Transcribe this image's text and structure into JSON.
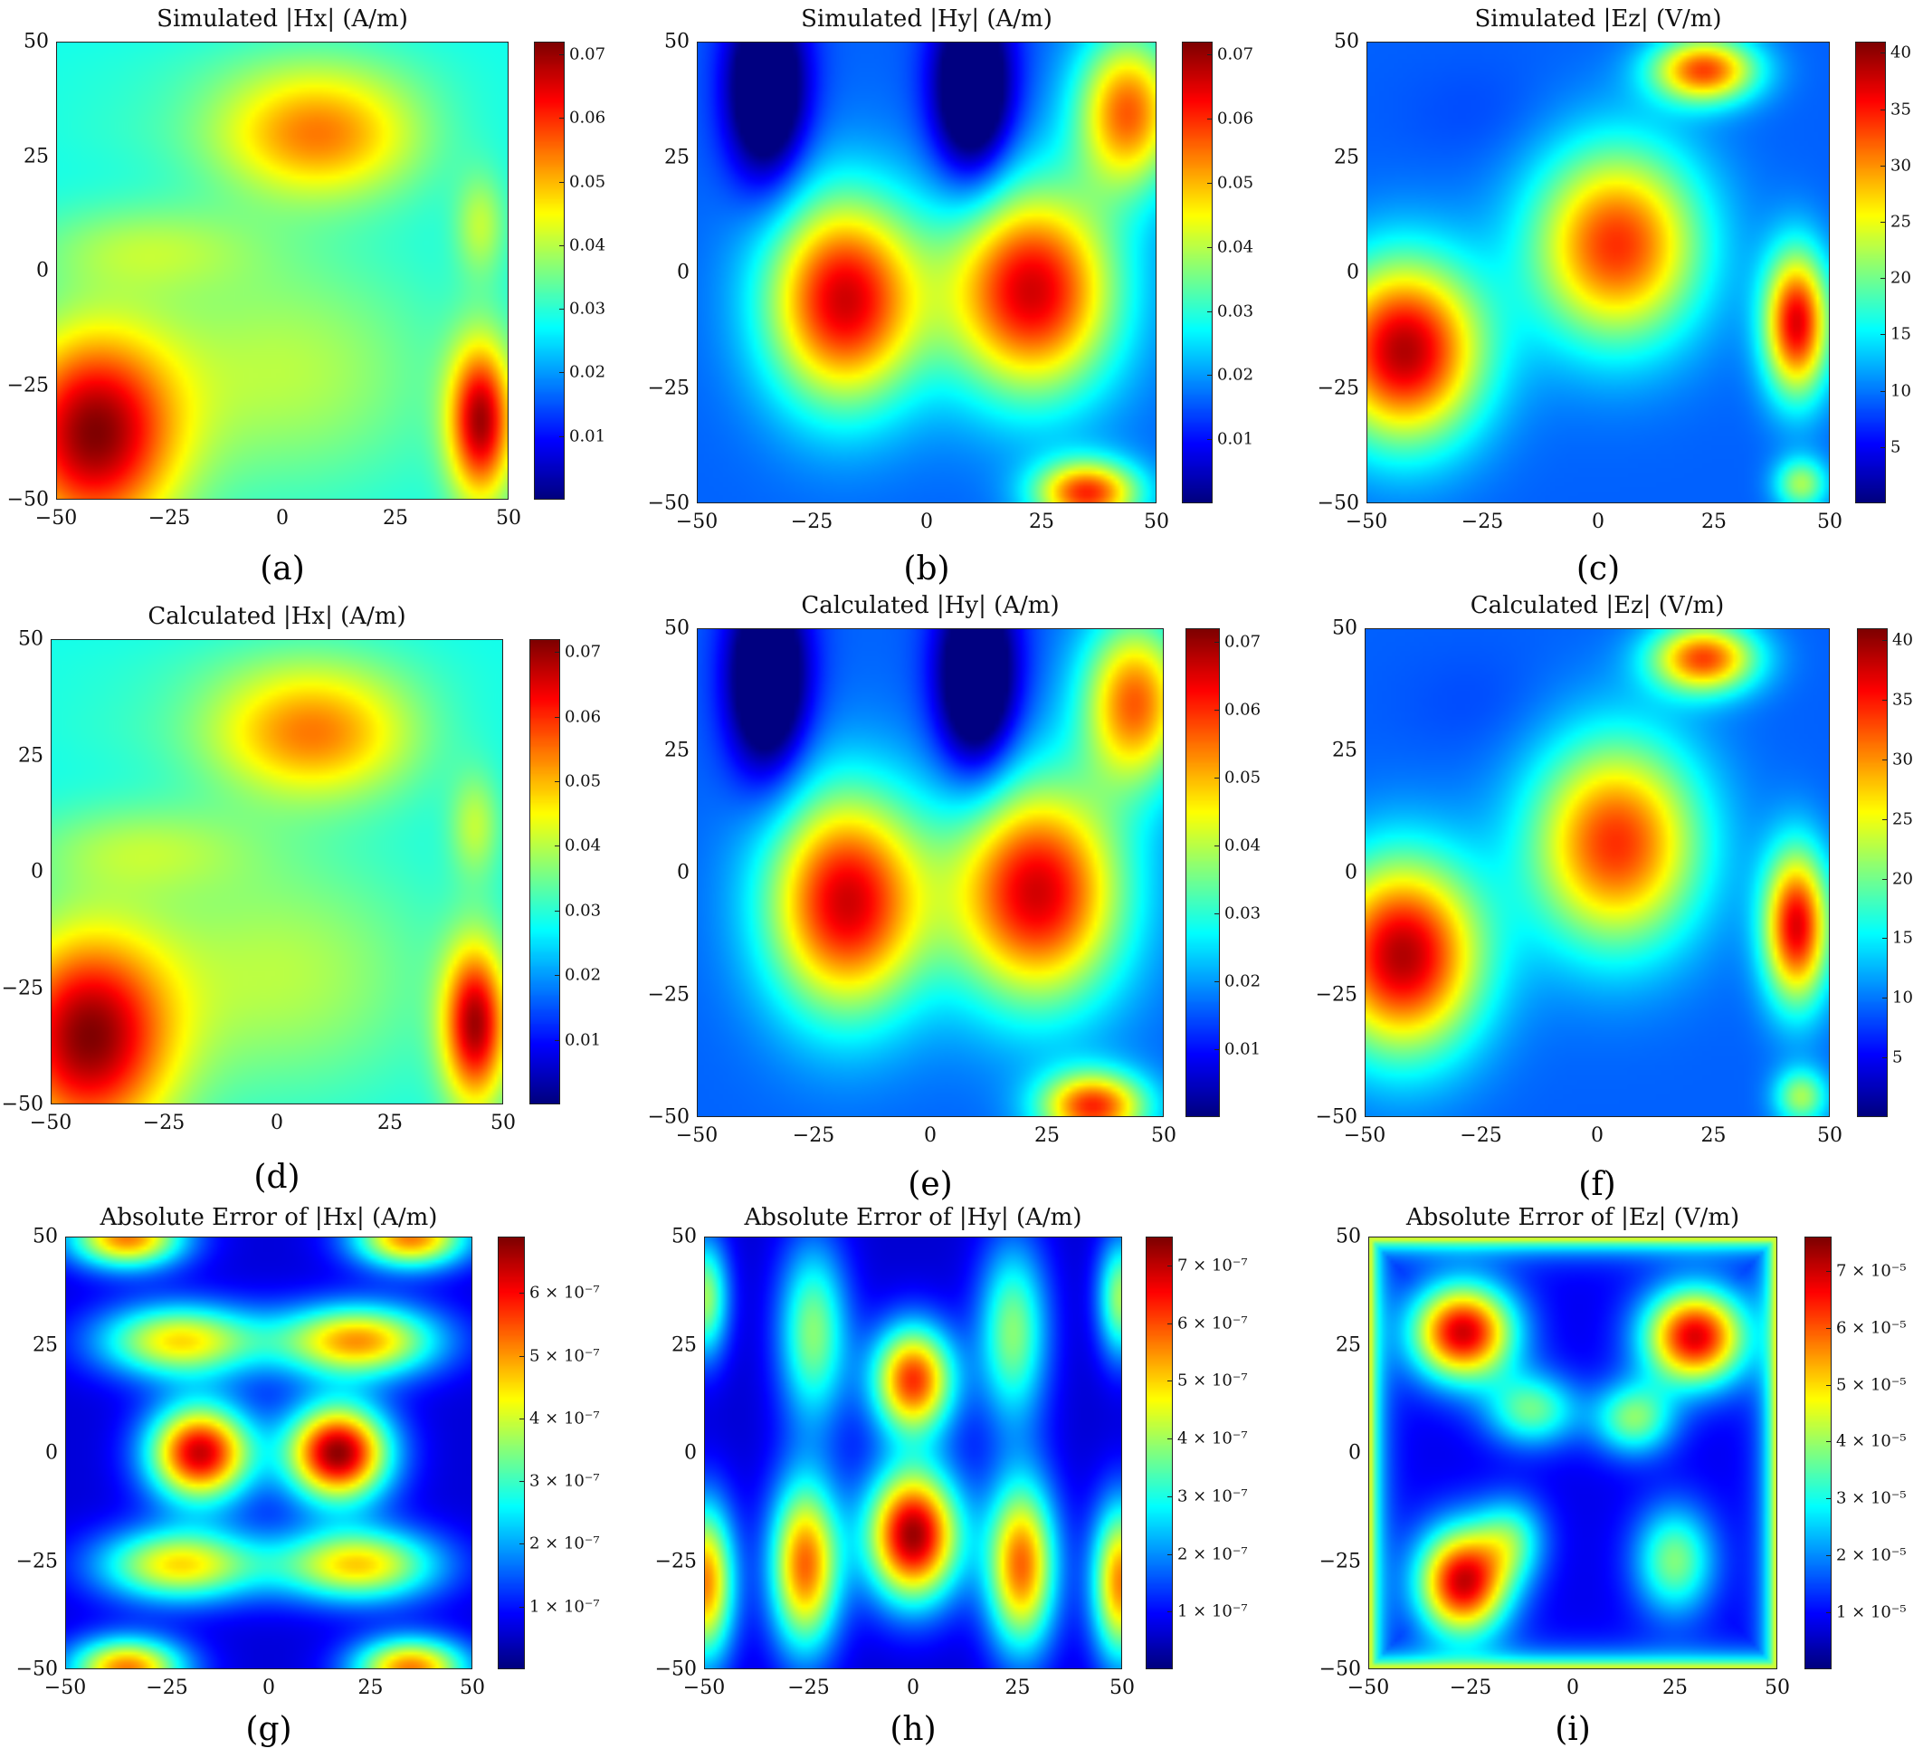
{
  "chart_data": [
    {
      "type": "heatmap",
      "panel": "(a)",
      "title": "Simulated |Hx| (A/m)",
      "xlim": [
        -50,
        50
      ],
      "ylim": [
        -50,
        50
      ],
      "x_ticks": [
        "−50",
        "−25",
        "0",
        "25",
        "50"
      ],
      "y_ticks": [
        "50",
        "25",
        "0",
        "−25",
        "−50"
      ],
      "colorbar": {
        "ticks": [
          "0.07",
          "0.06",
          "0.05",
          "0.04",
          "0.03",
          "0.02",
          "0.01"
        ],
        "range": [
          0,
          0.072
        ]
      },
      "colormap": "jet",
      "features": [
        [
          -42,
          -36,
          13,
          16,
          0.07
        ],
        [
          44,
          -33,
          5,
          12,
          0.068
        ],
        [
          8,
          30,
          16,
          10,
          0.054
        ],
        [
          0,
          -22,
          24,
          18,
          0.04
        ],
        [
          -30,
          5,
          18,
          7,
          0.038
        ],
        [
          -30,
          31,
          18,
          7,
          0.03
        ],
        [
          44,
          10,
          4,
          8,
          0.04
        ],
        [
          -5,
          44,
          30,
          6,
          0.03
        ]
      ],
      "baseline": 0.028
    },
    {
      "type": "heatmap",
      "panel": "(b)",
      "title": "Simulated |Hy| (A/m)",
      "xlim": [
        -50,
        50
      ],
      "ylim": [
        -50,
        50
      ],
      "x_ticks": [
        "−50",
        "−25",
        "0",
        "25",
        "50"
      ],
      "y_ticks": [
        "50",
        "25",
        "0",
        "−25",
        "−50"
      ],
      "colorbar": {
        "ticks": [
          "0.07",
          "0.06",
          "0.05",
          "0.04",
          "0.03",
          "0.02",
          "0.01"
        ],
        "range": [
          0,
          0.072
        ]
      },
      "colormap": "jet",
      "features": [
        [
          -18,
          -6,
          12,
          16,
          0.066
        ],
        [
          23,
          -4,
          13,
          16,
          0.066
        ],
        [
          44,
          35,
          8,
          12,
          0.056
        ],
        [
          35,
          -48,
          8,
          5,
          0.06
        ],
        [
          -35,
          40,
          6,
          14,
          -0.016
        ],
        [
          10,
          40,
          6,
          14,
          -0.016
        ]
      ],
      "baseline": 0.016
    },
    {
      "type": "heatmap",
      "panel": "(c)",
      "title": "Simulated |Ez| (V/m)",
      "xlim": [
        -50,
        50
      ],
      "ylim": [
        -50,
        50
      ],
      "x_ticks": [
        "−50",
        "−25",
        "0",
        "25",
        "50"
      ],
      "y_ticks": [
        "50",
        "25",
        "0",
        "−25",
        "−50"
      ],
      "colorbar": {
        "ticks": [
          "40",
          "35",
          "30",
          "25",
          "20",
          "15",
          "10",
          "5"
        ],
        "range": [
          0,
          41
        ]
      },
      "colormap": "jet",
      "features": [
        [
          -42,
          -17,
          12,
          14,
          39
        ],
        [
          4,
          6,
          13,
          15,
          34
        ],
        [
          43,
          -11,
          5,
          11,
          37
        ],
        [
          23,
          44,
          8,
          5,
          33
        ],
        [
          44,
          -46,
          4,
          4,
          22
        ],
        [
          -25,
          34,
          12,
          8,
          8
        ]
      ],
      "baseline": 9
    },
    {
      "type": "heatmap",
      "panel": "(d)",
      "title": "Calculated |Hx| (A/m)",
      "xlim": [
        -50,
        50
      ],
      "ylim": [
        -50,
        50
      ],
      "x_ticks": [
        "−50",
        "−25",
        "0",
        "25",
        "50"
      ],
      "y_ticks": [
        "50",
        "25",
        "0",
        "−25",
        "−50"
      ],
      "colorbar": {
        "ticks": [
          "0.07",
          "0.06",
          "0.05",
          "0.04",
          "0.03",
          "0.02",
          "0.01"
        ],
        "range": [
          0,
          0.072
        ]
      },
      "colormap": "jet",
      "features": [
        [
          -42,
          -36,
          13,
          16,
          0.07
        ],
        [
          44,
          -33,
          5,
          12,
          0.068
        ],
        [
          8,
          30,
          16,
          10,
          0.054
        ],
        [
          0,
          -22,
          24,
          18,
          0.04
        ],
        [
          -30,
          5,
          18,
          7,
          0.038
        ],
        [
          -30,
          31,
          18,
          7,
          0.03
        ],
        [
          44,
          10,
          4,
          8,
          0.04
        ],
        [
          -5,
          44,
          30,
          6,
          0.03
        ]
      ],
      "baseline": 0.028
    },
    {
      "type": "heatmap",
      "panel": "(e)",
      "title": "Calculated |Hy| (A/m)",
      "xlim": [
        -50,
        50
      ],
      "ylim": [
        -50,
        50
      ],
      "x_ticks": [
        "−50",
        "−25",
        "0",
        "25",
        "50"
      ],
      "y_ticks": [
        "50",
        "25",
        "0",
        "−25",
        "−50"
      ],
      "colorbar": {
        "ticks": [
          "0.07",
          "0.06",
          "0.05",
          "0.04",
          "0.03",
          "0.02",
          "0.01"
        ],
        "range": [
          0,
          0.072
        ]
      },
      "colormap": "jet",
      "features": [
        [
          -18,
          -6,
          12,
          16,
          0.066
        ],
        [
          23,
          -4,
          13,
          16,
          0.066
        ],
        [
          44,
          35,
          8,
          12,
          0.056
        ],
        [
          35,
          -48,
          8,
          5,
          0.06
        ],
        [
          -35,
          40,
          6,
          14,
          -0.016
        ],
        [
          10,
          40,
          6,
          14,
          -0.016
        ]
      ],
      "baseline": 0.016
    },
    {
      "type": "heatmap",
      "panel": "(f)",
      "title": "Calculated |Ez| (V/m)",
      "xlim": [
        -50,
        50
      ],
      "ylim": [
        -50,
        50
      ],
      "x_ticks": [
        "−50",
        "−25",
        "0",
        "25",
        "50"
      ],
      "y_ticks": [
        "50",
        "25",
        "0",
        "−25",
        "−50"
      ],
      "colorbar": {
        "ticks": [
          "40",
          "35",
          "30",
          "25",
          "20",
          "15",
          "10",
          "5"
        ],
        "range": [
          0,
          41
        ]
      },
      "colormap": "jet",
      "features": [
        [
          -42,
          -17,
          12,
          14,
          39
        ],
        [
          4,
          6,
          13,
          15,
          34
        ],
        [
          43,
          -11,
          5,
          11,
          37
        ],
        [
          23,
          44,
          8,
          5,
          33
        ],
        [
          44,
          -46,
          4,
          4,
          22
        ],
        [
          -25,
          34,
          12,
          8,
          8
        ]
      ],
      "baseline": 9
    },
    {
      "type": "heatmap",
      "panel": "(g)",
      "title": "Absolute Error of |Hx| (A/m)",
      "xlim": [
        -50,
        50
      ],
      "ylim": [
        -50,
        50
      ],
      "x_ticks": [
        "−50",
        "−25",
        "0",
        "25",
        "50"
      ],
      "y_ticks": [
        "50",
        "25",
        "0",
        "−25",
        "−50"
      ],
      "colorbar": {
        "ticks": [
          "6 × 10⁻⁷",
          "5 × 10⁻⁷",
          "4 × 10⁻⁷",
          "3 × 10⁻⁷",
          "2 × 10⁻⁷",
          "1 × 10⁻⁷"
        ],
        "range": [
          0,
          6.9e-07
        ]
      },
      "colormap": "jet",
      "features": [
        [
          -17,
          0,
          9,
          8,
          6.4e-07
        ],
        [
          17,
          0,
          9,
          8,
          6.8e-07
        ],
        [
          -22,
          26,
          14,
          6,
          4.5e-07
        ],
        [
          22,
          26,
          14,
          6,
          5e-07
        ],
        [
          -22,
          -26,
          14,
          6,
          4.5e-07
        ],
        [
          22,
          -26,
          14,
          6,
          4.6e-07
        ],
        [
          -35,
          50,
          10,
          5,
          5.2e-07
        ],
        [
          35,
          50,
          10,
          5,
          5.2e-07
        ],
        [
          -35,
          -50,
          10,
          5,
          5.2e-07
        ],
        [
          35,
          -50,
          10,
          5,
          5.2e-07
        ]
      ],
      "baseline": 6e-08
    },
    {
      "type": "heatmap",
      "panel": "(h)",
      "title": "Absolute Error of |Hy| (A/m)",
      "xlim": [
        -50,
        50
      ],
      "ylim": [
        -50,
        50
      ],
      "x_ticks": [
        "−50",
        "−25",
        "0",
        "25",
        "50"
      ],
      "y_ticks": [
        "50",
        "25",
        "0",
        "−25",
        "−50"
      ],
      "colorbar": {
        "ticks": [
          "7 × 10⁻⁷",
          "6 × 10⁻⁷",
          "5 × 10⁻⁷",
          "4 × 10⁻⁷",
          "3 × 10⁻⁷",
          "2 × 10⁻⁷",
          "1 × 10⁻⁷"
        ],
        "range": [
          0,
          7.5e-07
        ]
      },
      "colormap": "jet",
      "features": [
        [
          0,
          -19,
          8,
          11,
          7.3e-07
        ],
        [
          0,
          17,
          7,
          9,
          6.2e-07
        ],
        [
          -26,
          -26,
          6,
          14,
          5.8e-07
        ],
        [
          26,
          -26,
          6,
          14,
          5.8e-07
        ],
        [
          -50,
          -30,
          5,
          13,
          5.6e-07
        ],
        [
          50,
          -30,
          5,
          13,
          5.6e-07
        ],
        [
          -24,
          28,
          6,
          15,
          3.8e-07
        ],
        [
          24,
          28,
          6,
          15,
          3.8e-07
        ],
        [
          -50,
          36,
          4,
          10,
          4e-07
        ],
        [
          50,
          36,
          4,
          10,
          4e-07
        ]
      ],
      "baseline": 6e-08
    },
    {
      "type": "heatmap",
      "panel": "(i)",
      "title": "Absolute Error of |Ez| (V/m)",
      "xlim": [
        -50,
        50
      ],
      "ylim": [
        -50,
        50
      ],
      "x_ticks": [
        "−50",
        "−25",
        "0",
        "25",
        "50"
      ],
      "y_ticks": [
        "50",
        "25",
        "0",
        "−25",
        "−50"
      ],
      "colorbar": {
        "ticks": [
          "7 × 10⁻⁵",
          "6 × 10⁻⁵",
          "5 × 10⁻⁵",
          "4 × 10⁻⁵",
          "3 × 10⁻⁵",
          "2 × 10⁻⁵",
          "1 × 10⁻⁵"
        ],
        "range": [
          0,
          7.6e-05
        ]
      },
      "colormap": "jet",
      "features": [
        [
          -27,
          28,
          9,
          8,
          7e-05
        ],
        [
          30,
          27,
          9,
          8,
          6.9e-05
        ],
        [
          -27,
          -30,
          8,
          9,
          7e-05
        ],
        [
          -10,
          10,
          8,
          6,
          3.6e-05
        ],
        [
          15,
          8,
          7,
          6,
          3.8e-05
        ],
        [
          25,
          -25,
          7,
          9,
          3.8e-05
        ],
        [
          -15,
          -20,
          6,
          7,
          3e-05
        ]
      ],
      "baseline": 8e-06,
      "border": 5e-05
    }
  ]
}
